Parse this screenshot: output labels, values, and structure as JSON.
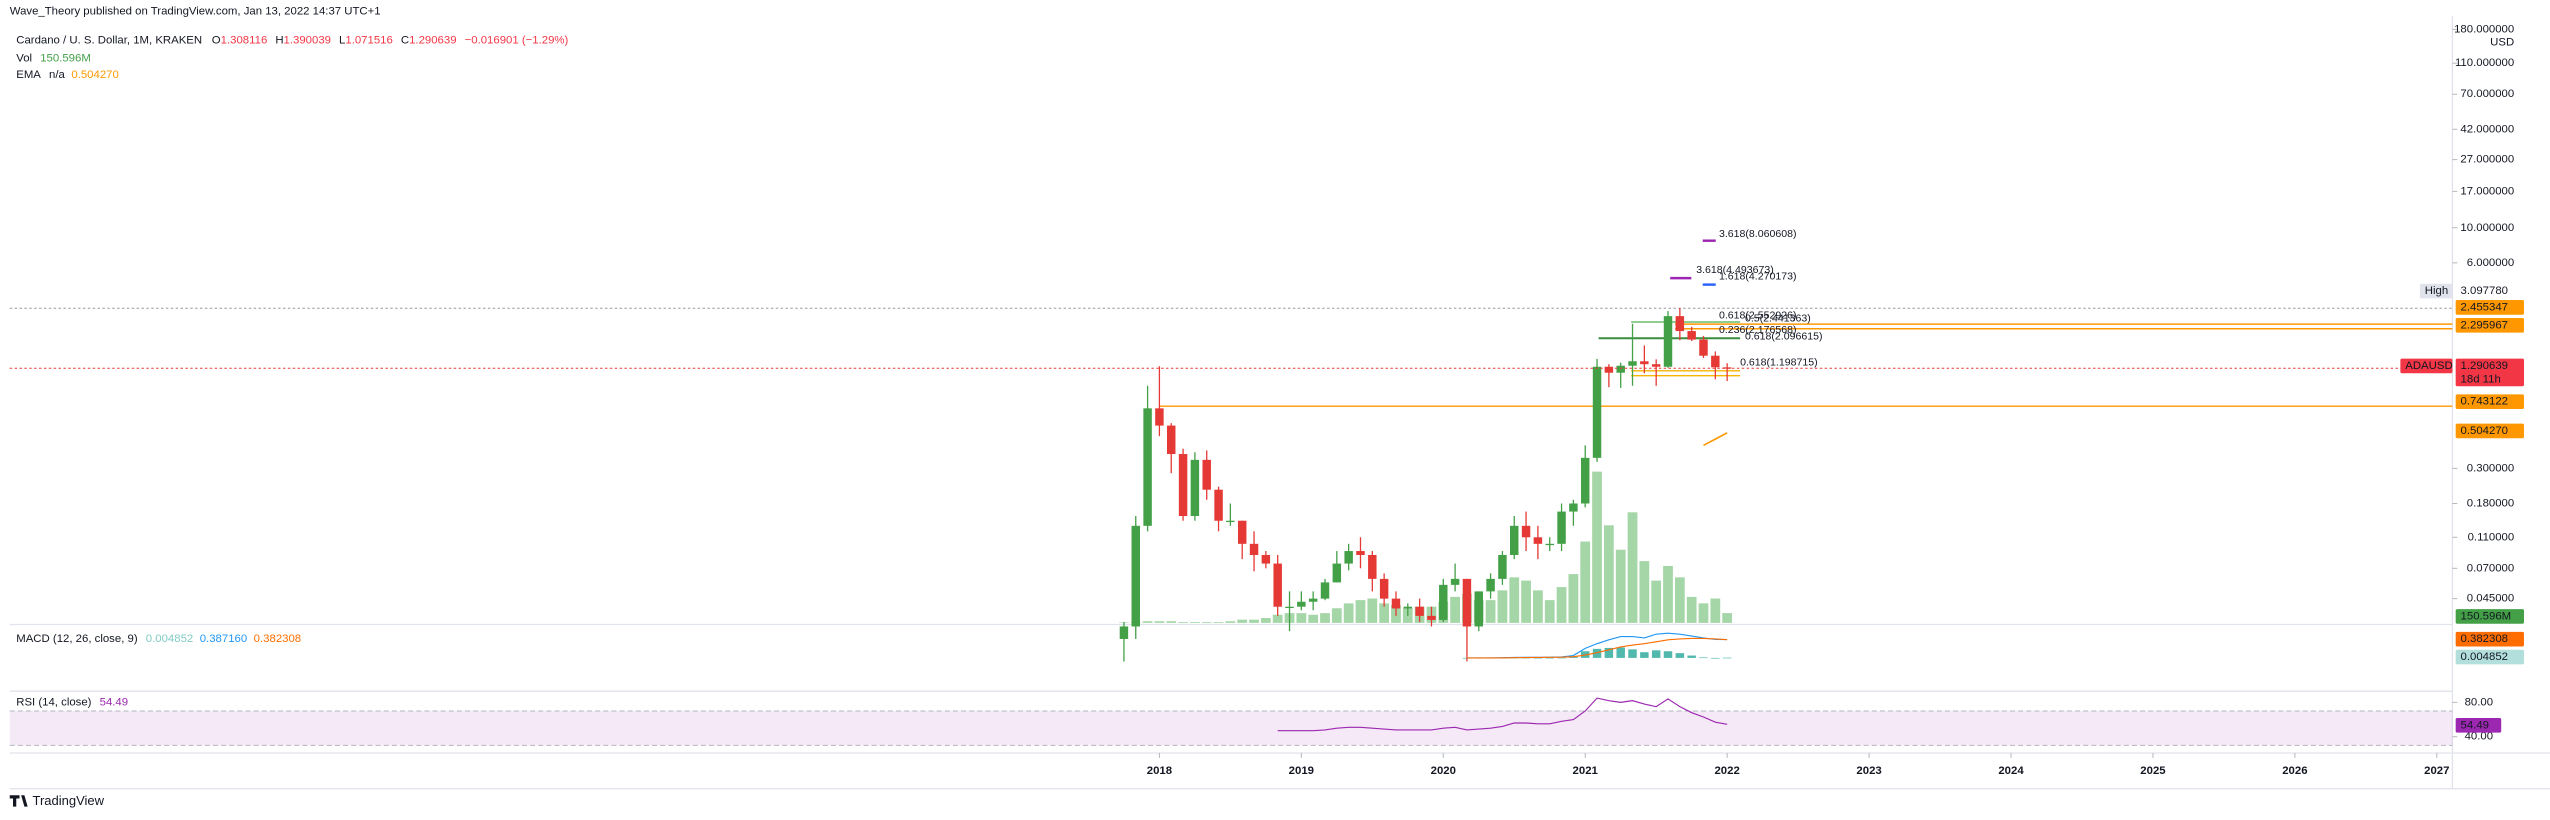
{
  "header": {
    "publisher": "Wave_Theory published on TradingView.com, Jan 13, 2022 14:37 UTC+1",
    "symbol": "Cardano / U. S. Dollar, 1M, KRAKEN",
    "ohlc_labels": [
      "O",
      "H",
      "L",
      "C"
    ],
    "change": "−0.016901 (−1.29%)",
    "brand": "TradingView"
  },
  "chart_data": {
    "type": "candlestick",
    "log": true,
    "unit": "USD",
    "up_color": "#43a047",
    "down_color": "#e53935",
    "x": [
      2017.75,
      2017.8333,
      2017.9167,
      2018,
      2018.0833,
      2018.1667,
      2018.25,
      2018.3333,
      2018.4167,
      2018.5,
      2018.5833,
      2018.6667,
      2018.75,
      2018.8333,
      2018.9167,
      2019,
      2019.0833,
      2019.1667,
      2019.25,
      2019.3333,
      2019.4167,
      2019.5,
      2019.5833,
      2019.6667,
      2019.75,
      2019.8333,
      2019.9167,
      2020,
      2020.0833,
      2020.1667,
      2020.25,
      2020.3333,
      2020.4167,
      2020.5,
      2020.5833,
      2020.6667,
      2020.75,
      2020.8333,
      2020.9167,
      2021,
      2021.0833,
      2021.1667,
      2021.25,
      2021.3333,
      2021.4167,
      2021.5,
      2021.5833,
      2021.6667,
      2021.75,
      2021.8333,
      2021.9167,
      2022
    ],
    "open": [
      0.025,
      0.03,
      0.13,
      0.72,
      0.56,
      0.37,
      0.15,
      0.34,
      0.22,
      0.14,
      0.14,
      0.1,
      0.085,
      0.075,
      0.04,
      0.04,
      0.043,
      0.045,
      0.057,
      0.075,
      0.09,
      0.085,
      0.06,
      0.045,
      0.039,
      0.04,
      0.035,
      0.033,
      0.055,
      0.06,
      0.03,
      0.05,
      0.06,
      0.085,
      0.13,
      0.11,
      0.1,
      0.1,
      0.16,
      0.18,
      0.35,
      1.32,
      1.21,
      1.34,
      1.43,
      1.37,
      1.32,
      2.76,
      2.22,
      1.96,
      1.55,
      1.308116
    ],
    "high": [
      0.032,
      0.15,
      1.0,
      1.33,
      0.58,
      0.4,
      0.38,
      0.39,
      0.23,
      0.18,
      0.14,
      0.12,
      0.09,
      0.085,
      0.05,
      0.05,
      0.05,
      0.06,
      0.09,
      0.1,
      0.11,
      0.09,
      0.065,
      0.05,
      0.042,
      0.045,
      0.04,
      0.06,
      0.075,
      0.06,
      0.05,
      0.065,
      0.09,
      0.15,
      0.16,
      0.13,
      0.11,
      0.18,
      0.19,
      0.42,
      1.48,
      1.37,
      1.4,
      2.47,
      1.8,
      1.47,
      2.97,
      3.1,
      2.36,
      2.07,
      1.65,
      1.390039
    ],
    "low": [
      0.018,
      0.025,
      0.12,
      0.48,
      0.28,
      0.14,
      0.14,
      0.19,
      0.12,
      0.13,
      0.08,
      0.067,
      0.07,
      0.035,
      0.028,
      0.038,
      0.038,
      0.044,
      0.057,
      0.068,
      0.07,
      0.05,
      0.04,
      0.035,
      0.035,
      0.032,
      0.03,
      0.032,
      0.05,
      0.018,
      0.028,
      0.045,
      0.055,
      0.08,
      0.09,
      0.08,
      0.09,
      0.09,
      0.13,
      0.17,
      0.33,
      0.98,
      0.97,
      1.0,
      1.2,
      1.0,
      1.3,
      1.94,
      1.92,
      1.5,
      1.1,
      1.071516
    ],
    "close": [
      0.03,
      0.13,
      0.72,
      0.56,
      0.37,
      0.15,
      0.34,
      0.22,
      0.14,
      0.14,
      0.1,
      0.085,
      0.075,
      0.04,
      0.04,
      0.043,
      0.045,
      0.057,
      0.075,
      0.09,
      0.085,
      0.06,
      0.045,
      0.039,
      0.04,
      0.035,
      0.033,
      0.055,
      0.06,
      0.03,
      0.05,
      0.06,
      0.085,
      0.13,
      0.11,
      0.1,
      0.1,
      0.16,
      0.18,
      0.35,
      1.32,
      1.21,
      1.34,
      1.43,
      1.37,
      1.32,
      2.76,
      2.22,
      1.96,
      1.55,
      1.31,
      1.290639
    ],
    "symbol": "ADAUSD",
    "countdown": "18d 11h",
    "xlim": [
      2009.9,
      2027.11
    ],
    "xticks": [
      2018,
      2019,
      2020,
      2021,
      2022,
      2023,
      2024,
      2025,
      2026,
      2027
    ],
    "ylim": [
      0.0316,
      218
    ],
    "yticks": [
      {
        "value": 180,
        "label": "180.000000"
      },
      {
        "value": 110,
        "label": "110.000000"
      },
      {
        "value": 70,
        "label": "70.000000"
      },
      {
        "value": 42,
        "label": "42.000000"
      },
      {
        "value": 27,
        "label": "27.000000"
      },
      {
        "value": 17,
        "label": "17.000000"
      },
      {
        "value": 10,
        "label": "10.000000"
      },
      {
        "value": 6,
        "label": "6.000000"
      },
      {
        "value": 0.3,
        "label": "0.300000"
      },
      {
        "value": 0.18,
        "label": "0.180000"
      },
      {
        "value": 0.11,
        "label": "0.110000"
      },
      {
        "value": 0.07,
        "label": "0.070000"
      },
      {
        "value": 0.045,
        "label": "0.045000"
      }
    ],
    "price_lines": [
      {
        "name": "High",
        "value": 3.09778,
        "label": "3.097780",
        "color": "#9598a1"
      },
      {
        "value": 2.455347,
        "color": "#ff9800"
      },
      {
        "value": 2.295967,
        "color": "#ff9800"
      },
      {
        "value": 0.743122,
        "color": "#ff9800"
      }
    ],
    "volume": {
      "name": "Vol",
      "color": "#a5d6a7",
      "last_label": "150.596M",
      "values": [
        7.5,
        12.5,
        25,
        25,
        25,
        12.5,
        12.5,
        12.5,
        12.5,
        25,
        50,
        50,
        75,
        125,
        150,
        150,
        125,
        150,
        225,
        300,
        350,
        375,
        300,
        275,
        225,
        250,
        250,
        325,
        400,
        450,
        350,
        350,
        500,
        700,
        650,
        500,
        350,
        550,
        750,
        1250,
        2325,
        1500,
        1125,
        1700,
        950,
        650,
        875,
        700,
        400,
        300,
        375,
        150.596
      ]
    },
    "ema": {
      "name": "EMA",
      "status": "n/a",
      "color": "#ff9800",
      "x": [
        2021.8333,
        2021.9167,
        2022
      ],
      "values": [
        0.42,
        0.46,
        0.50427
      ],
      "last_label": "0.504270"
    },
    "annotations": [
      {
        "text": "3.618(8.060608)",
        "color": "#9c27b0"
      },
      {
        "text": "3.618(4.493673)",
        "color": "#9c27b0"
      },
      {
        "text": "1.618(4.270173)",
        "color": "#2962ff"
      },
      {
        "text": "0.618(2.552926)",
        "color": "#f7b500"
      },
      {
        "text": "0.5(2.441363)",
        "color": "#4caf50"
      },
      {
        "text": "0.236(2.176568)",
        "color": "#4caf50"
      },
      {
        "text": "0.618(2.096615)",
        "color": "#f7b500"
      },
      {
        "text": "0.618(1.198715)",
        "color": "#f7b500"
      }
    ]
  },
  "macd": {
    "name": "MACD (12, 26, close, 9)",
    "ylim": [
      -0.05,
      0.6
    ],
    "macd_color": "#2196f3",
    "signal_color": "#ff6d00",
    "hist_color": "#26a69a",
    "x": [
      2020.1667,
      2020.25,
      2020.3333,
      2020.4167,
      2020.5,
      2020.5833,
      2020.6667,
      2020.75,
      2020.8333,
      2020.9167,
      2021,
      2021.0833,
      2021.1667,
      2021.25,
      2021.3333,
      2021.4167,
      2021.5,
      2021.5833,
      2021.6667,
      2021.75,
      2021.8333,
      2021.9167,
      2022
    ],
    "macd": [
      0,
      0,
      0,
      0.005,
      0.01,
      0.012,
      0.012,
      0.015,
      0.02,
      0.05,
      0.2,
      0.3,
      0.38,
      0.45,
      0.45,
      0.42,
      0.5,
      0.52,
      0.5,
      0.46,
      0.42,
      0.39,
      0.38716
    ],
    "signal": [
      0,
      0,
      0,
      0,
      0.004,
      0.007,
      0.01,
      0.012,
      0.015,
      0.025,
      0.06,
      0.11,
      0.17,
      0.23,
      0.27,
      0.3,
      0.34,
      0.38,
      0.4,
      0.41,
      0.41,
      0.4,
      0.382308
    ],
    "histogram": [
      0,
      0,
      0,
      0.005,
      0.006,
      0.005,
      0.002,
      0.003,
      0.005,
      0.025,
      0.14,
      0.19,
      0.21,
      0.22,
      0.18,
      0.12,
      0.16,
      0.14,
      0.1,
      0.05,
      0.01,
      -0.01,
      0.004852
    ],
    "last_labels": {
      "histogram": "0.004852",
      "macd": "0.387160",
      "signal": "0.382308"
    }
  },
  "rsi": {
    "name": "RSI (14, close)",
    "color": "#9c27b0",
    "band": [
      30,
      70
    ],
    "ylim": [
      23,
      93
    ],
    "yticks": [
      {
        "value": 80,
        "label": "80.00"
      },
      {
        "value": 40,
        "label": "40.00"
      }
    ],
    "x": [
      2018.8333,
      2018.9167,
      2019,
      2019.0833,
      2019.1667,
      2019.25,
      2019.3333,
      2019.4167,
      2019.5,
      2019.5833,
      2019.6667,
      2019.75,
      2019.8333,
      2019.9167,
      2020,
      2020.0833,
      2020.1667,
      2020.25,
      2020.3333,
      2020.4167,
      2020.5,
      2020.5833,
      2020.6667,
      2020.75,
      2020.8333,
      2020.9167,
      2021,
      2021.0833,
      2021.1667,
      2021.25,
      2021.3333,
      2021.4167,
      2021.5,
      2021.5833,
      2021.6667,
      2021.75,
      2021.8333,
      2021.9167,
      2022
    ],
    "values": [
      47,
      47,
      47,
      47,
      48,
      50,
      51,
      51,
      50,
      49,
      48,
      48,
      48,
      48,
      50,
      51,
      48,
      49,
      50,
      52,
      56,
      56,
      55,
      55,
      58,
      60,
      70,
      85,
      82,
      80,
      82,
      78,
      75,
      84,
      75,
      68,
      63,
      57,
      54.49
    ]
  }
}
